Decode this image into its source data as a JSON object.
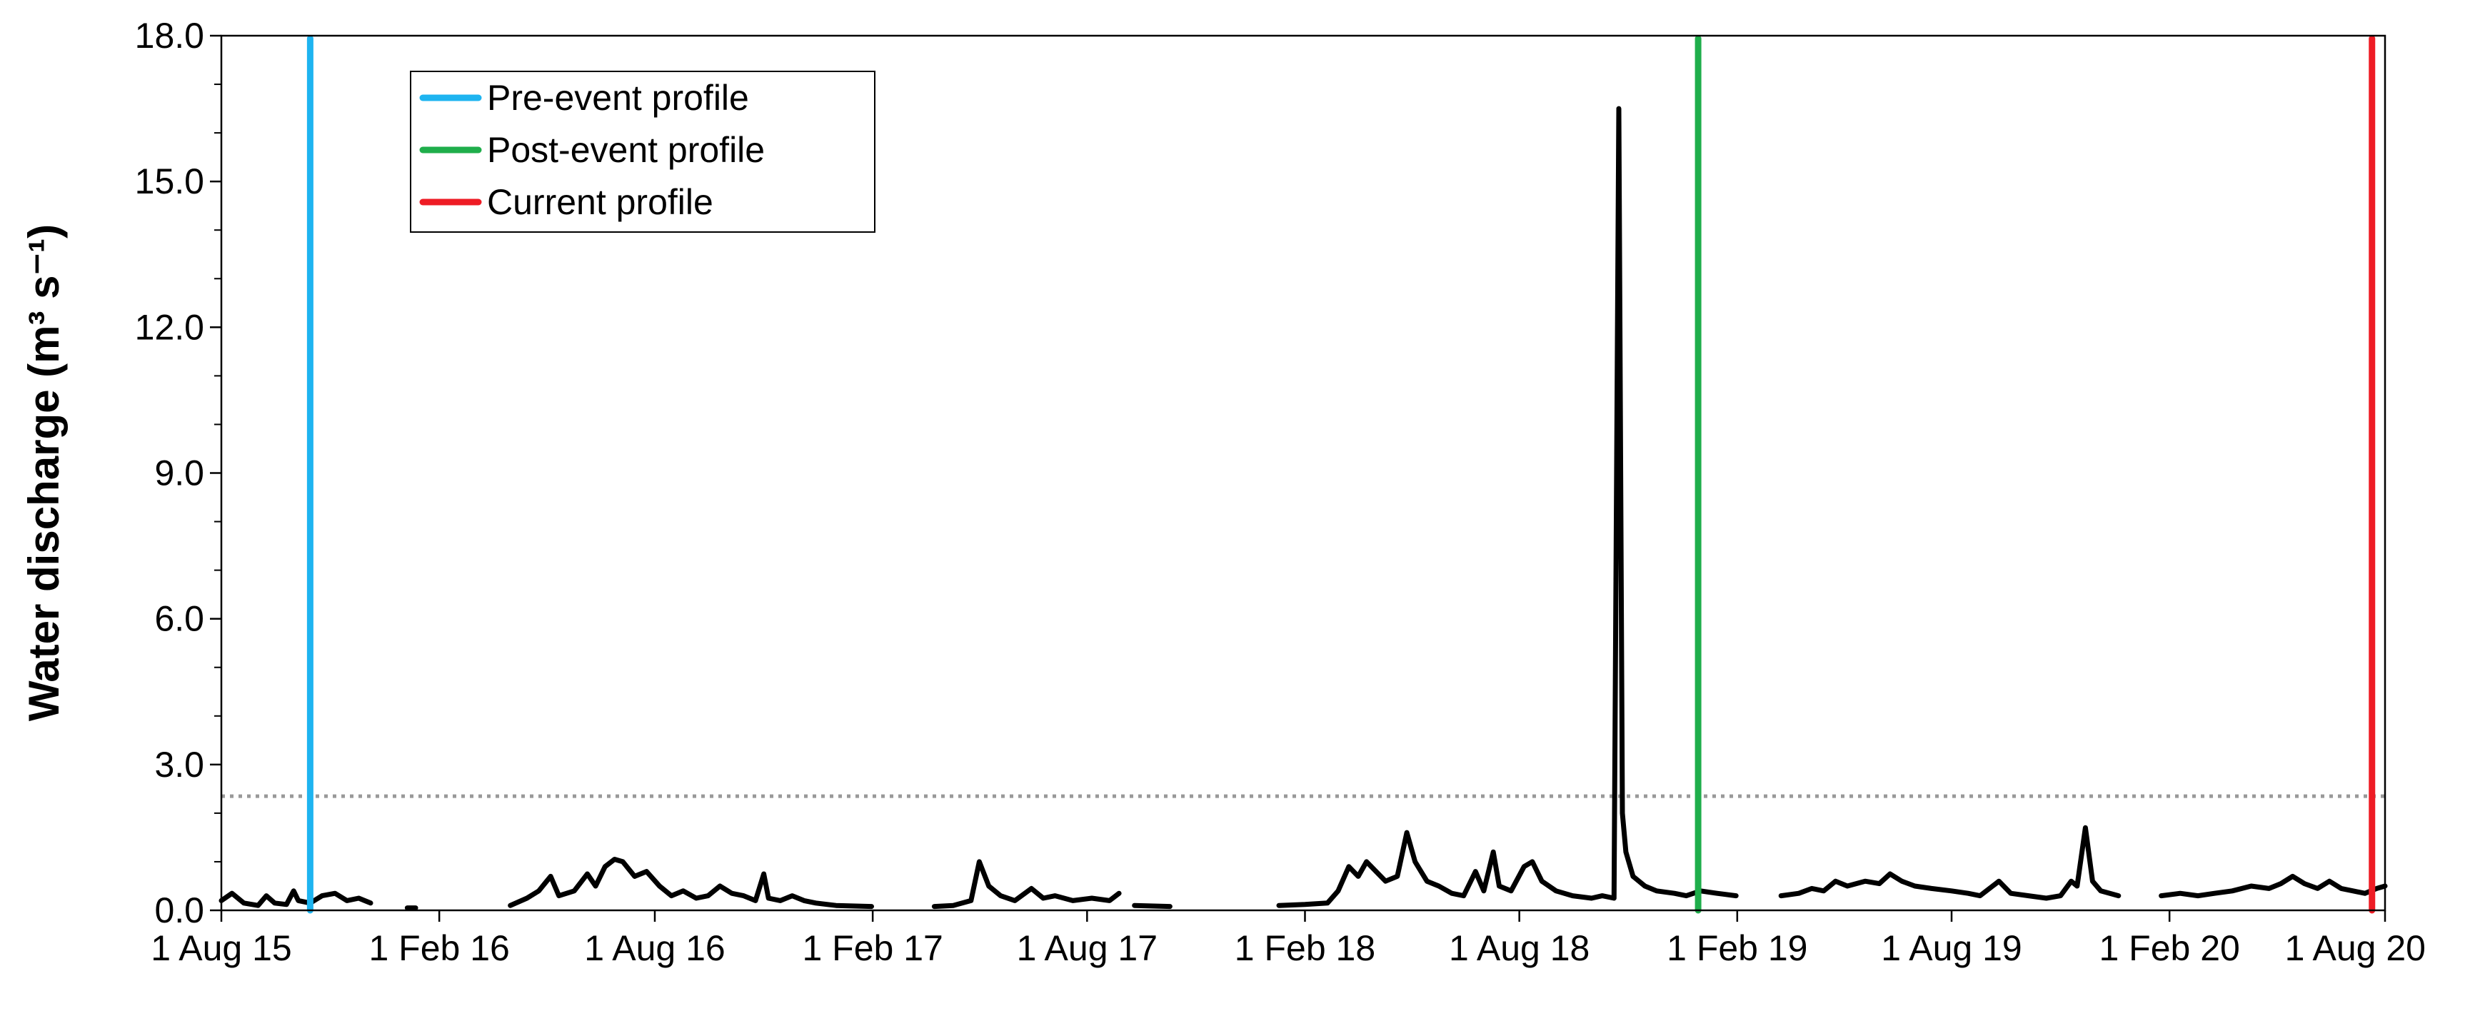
{
  "chart_data": {
    "type": "line",
    "title": "",
    "xlabel": "",
    "ylabel": "Water discharge (m³ s⁻¹)",
    "ylim": [
      0,
      18
    ],
    "xlim": [
      "2015-08-01",
      "2020-08-01"
    ],
    "y_ticks": [
      "0.0",
      "3.0",
      "6.0",
      "9.0",
      "12.0",
      "15.0",
      "18.0"
    ],
    "x_ticks": [
      {
        "date": "2015-08-01",
        "label": "1 Aug 15"
      },
      {
        "date": "2016-02-01",
        "label": "1 Feb 16"
      },
      {
        "date": "2016-08-01",
        "label": "1 Aug 16"
      },
      {
        "date": "2017-02-01",
        "label": "1 Feb 17"
      },
      {
        "date": "2017-08-01",
        "label": "1 Aug 17"
      },
      {
        "date": "2018-02-01",
        "label": "1 Feb 18"
      },
      {
        "date": "2018-08-01",
        "label": "1 Aug 18"
      },
      {
        "date": "2019-02-01",
        "label": "1 Feb 19"
      },
      {
        "date": "2019-08-01",
        "label": "1 Aug 19"
      },
      {
        "date": "2020-02-01",
        "label": "1 Feb 20"
      },
      {
        "date": "2020-08-01",
        "label": "1 Aug 20"
      }
    ],
    "grid": false,
    "legend_position": "top-left",
    "threshold": {
      "y": 2.35,
      "style": "dotted",
      "color": "#999999"
    },
    "profiles": [
      {
        "name": "Pre-event profile",
        "date": "2015-10-15",
        "color": "#1eb4f0"
      },
      {
        "name": "Post-event profile",
        "date": "2018-12-30",
        "color": "#1fae4b"
      },
      {
        "name": "Current profile",
        "date": "2020-07-21",
        "color": "#ee1c25"
      }
    ],
    "series": [
      {
        "color": "#000000",
        "segments": [
          [
            [
              "2015-08-01",
              0.2
            ],
            [
              "2015-08-10",
              0.35
            ],
            [
              "2015-08-20",
              0.15
            ],
            [
              "2015-09-01",
              0.1
            ],
            [
              "2015-09-08",
              0.3
            ],
            [
              "2015-09-15",
              0.15
            ],
            [
              "2015-09-25",
              0.12
            ],
            [
              "2015-10-01",
              0.4
            ],
            [
              "2015-10-05",
              0.2
            ],
            [
              "2015-10-15",
              0.15
            ],
            [
              "2015-10-25",
              0.3
            ],
            [
              "2015-11-05",
              0.35
            ],
            [
              "2015-11-15",
              0.2
            ],
            [
              "2015-11-25",
              0.25
            ],
            [
              "2015-12-05",
              0.15
            ]
          ],
          [
            [
              "2016-01-05",
              0.05
            ],
            [
              "2016-01-12",
              0.05
            ]
          ],
          [
            [
              "2016-04-01",
              0.1
            ],
            [
              "2016-04-15",
              0.25
            ],
            [
              "2016-04-25",
              0.4
            ],
            [
              "2016-05-05",
              0.7
            ],
            [
              "2016-05-12",
              0.3
            ],
            [
              "2016-05-25",
              0.4
            ],
            [
              "2016-06-05",
              0.75
            ],
            [
              "2016-06-12",
              0.5
            ],
            [
              "2016-06-20",
              0.9
            ],
            [
              "2016-06-28",
              1.05
            ],
            [
              "2016-07-05",
              1.0
            ],
            [
              "2016-07-15",
              0.7
            ],
            [
              "2016-07-25",
              0.8
            ],
            [
              "2016-08-05",
              0.5
            ],
            [
              "2016-08-15",
              0.3
            ],
            [
              "2016-08-25",
              0.4
            ],
            [
              "2016-09-05",
              0.25
            ],
            [
              "2016-09-15",
              0.3
            ],
            [
              "2016-09-25",
              0.5
            ],
            [
              "2016-10-05",
              0.35
            ],
            [
              "2016-10-15",
              0.3
            ],
            [
              "2016-10-25",
              0.2
            ],
            [
              "2016-11-01",
              0.75
            ],
            [
              "2016-11-05",
              0.25
            ],
            [
              "2016-11-15",
              0.2
            ],
            [
              "2016-11-25",
              0.3
            ],
            [
              "2016-12-05",
              0.2
            ],
            [
              "2016-12-15",
              0.15
            ],
            [
              "2017-01-01",
              0.1
            ],
            [
              "2017-01-31",
              0.08
            ]
          ],
          [
            [
              "2017-03-25",
              0.08
            ],
            [
              "2017-04-10",
              0.1
            ],
            [
              "2017-04-25",
              0.2
            ],
            [
              "2017-05-02",
              1.0
            ],
            [
              "2017-05-10",
              0.5
            ],
            [
              "2017-05-20",
              0.3
            ],
            [
              "2017-06-01",
              0.2
            ],
            [
              "2017-06-15",
              0.45
            ],
            [
              "2017-06-25",
              0.25
            ],
            [
              "2017-07-05",
              0.3
            ],
            [
              "2017-07-20",
              0.2
            ],
            [
              "2017-08-05",
              0.25
            ],
            [
              "2017-08-20",
              0.2
            ],
            [
              "2017-08-28",
              0.35
            ]
          ],
          [
            [
              "2017-09-10",
              0.1
            ],
            [
              "2017-10-10",
              0.08
            ]
          ],
          [
            [
              "2018-01-10",
              0.1
            ],
            [
              "2018-02-01",
              0.12
            ],
            [
              "2018-02-20",
              0.15
            ],
            [
              "2018-03-01",
              0.4
            ],
            [
              "2018-03-10",
              0.9
            ],
            [
              "2018-03-18",
              0.7
            ],
            [
              "2018-03-25",
              1.0
            ],
            [
              "2018-04-02",
              0.8
            ],
            [
              "2018-04-10",
              0.6
            ],
            [
              "2018-04-20",
              0.7
            ],
            [
              "2018-04-28",
              1.6
            ],
            [
              "2018-05-05",
              1.0
            ],
            [
              "2018-05-15",
              0.6
            ],
            [
              "2018-05-25",
              0.5
            ],
            [
              "2018-06-05",
              0.35
            ],
            [
              "2018-06-15",
              0.3
            ],
            [
              "2018-06-25",
              0.8
            ],
            [
              "2018-07-02",
              0.4
            ],
            [
              "2018-07-10",
              1.2
            ],
            [
              "2018-07-15",
              0.5
            ],
            [
              "2018-07-25",
              0.4
            ],
            [
              "2018-08-05",
              0.9
            ],
            [
              "2018-08-12",
              1.0
            ],
            [
              "2018-08-20",
              0.6
            ],
            [
              "2018-09-01",
              0.4
            ],
            [
              "2018-09-15",
              0.3
            ],
            [
              "2018-10-01",
              0.25
            ],
            [
              "2018-10-10",
              0.3
            ],
            [
              "2018-10-20",
              0.25
            ],
            [
              "2018-10-24",
              16.5
            ],
            [
              "2018-10-27",
              2.0
            ],
            [
              "2018-10-30",
              1.2
            ],
            [
              "2018-11-05",
              0.7
            ],
            [
              "2018-11-15",
              0.5
            ],
            [
              "2018-11-25",
              0.4
            ],
            [
              "2018-12-10",
              0.35
            ],
            [
              "2018-12-20",
              0.3
            ],
            [
              "2019-01-01",
              0.4
            ],
            [
              "2019-01-15",
              0.35
            ],
            [
              "2019-01-31",
              0.3
            ]
          ],
          [
            [
              "2019-03-10",
              0.3
            ],
            [
              "2019-03-25",
              0.35
            ],
            [
              "2019-04-05",
              0.45
            ],
            [
              "2019-04-15",
              0.4
            ],
            [
              "2019-04-25",
              0.6
            ],
            [
              "2019-05-05",
              0.5
            ],
            [
              "2019-05-20",
              0.6
            ],
            [
              "2019-06-01",
              0.55
            ],
            [
              "2019-06-10",
              0.75
            ],
            [
              "2019-06-20",
              0.6
            ],
            [
              "2019-07-01",
              0.5
            ],
            [
              "2019-07-15",
              0.45
            ],
            [
              "2019-08-01",
              0.4
            ],
            [
              "2019-08-15",
              0.35
            ],
            [
              "2019-08-25",
              0.3
            ],
            [
              "2019-09-10",
              0.6
            ],
            [
              "2019-09-20",
              0.35
            ],
            [
              "2019-10-05",
              0.3
            ],
            [
              "2019-10-20",
              0.25
            ],
            [
              "2019-11-01",
              0.3
            ],
            [
              "2019-11-10",
              0.6
            ],
            [
              "2019-11-15",
              0.5
            ],
            [
              "2019-11-22",
              1.7
            ],
            [
              "2019-11-28",
              0.6
            ],
            [
              "2019-12-05",
              0.4
            ],
            [
              "2019-12-20",
              0.3
            ]
          ],
          [
            [
              "2020-01-25",
              0.3
            ],
            [
              "2020-02-10",
              0.35
            ],
            [
              "2020-02-25",
              0.3
            ],
            [
              "2020-03-10",
              0.35
            ],
            [
              "2020-03-25",
              0.4
            ],
            [
              "2020-04-10",
              0.5
            ],
            [
              "2020-04-25",
              0.45
            ],
            [
              "2020-05-05",
              0.55
            ],
            [
              "2020-05-15",
              0.7
            ],
            [
              "2020-05-25",
              0.55
            ],
            [
              "2020-06-05",
              0.45
            ],
            [
              "2020-06-15",
              0.6
            ],
            [
              "2020-06-25",
              0.45
            ],
            [
              "2020-07-05",
              0.4
            ],
            [
              "2020-07-15",
              0.35
            ],
            [
              "2020-07-25",
              0.45
            ],
            [
              "2020-08-01",
              0.5
            ]
          ]
        ]
      }
    ]
  }
}
